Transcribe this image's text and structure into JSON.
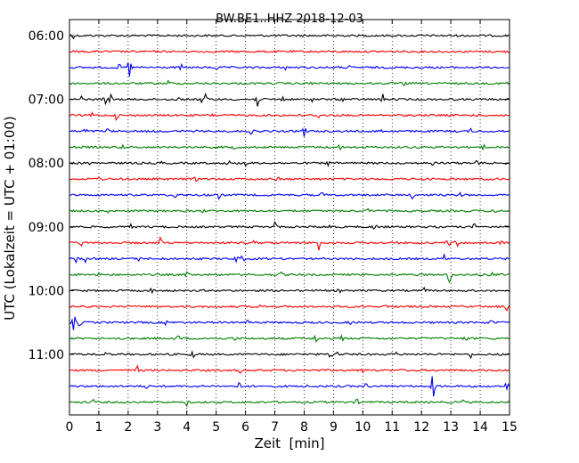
{
  "chart_data": {
    "type": "line",
    "title": "BW.BE1..HHZ 2018-12-03",
    "xlabel": "Zeit  [min]",
    "ylabel": "UTC (Lokalzeit = UTC + 01:00)",
    "xlim": [
      0,
      15
    ],
    "x_ticks": [
      "0",
      "1",
      "2",
      "3",
      "4",
      "5",
      "6",
      "7",
      "8",
      "9",
      "10",
      "11",
      "12",
      "13",
      "14",
      "15"
    ],
    "y_ticks": [
      {
        "label": "06:00",
        "row": 0
      },
      {
        "label": "07:00",
        "row": 4
      },
      {
        "label": "08:00",
        "row": 8
      },
      {
        "label": "09:00",
        "row": 12
      },
      {
        "label": "10:00",
        "row": 16
      },
      {
        "label": "11:00",
        "row": 20
      }
    ],
    "colors": [
      "#000000",
      "#ff0000",
      "#0000ff",
      "#008000"
    ],
    "grid": "vertical dotted",
    "rows": [
      {
        "t": "06:00",
        "events": [
          [
            9.1,
            0.4
          ],
          [
            0.1,
            0.4
          ]
        ]
      },
      {
        "t": "06:15",
        "events": []
      },
      {
        "t": "06:30",
        "events": [
          [
            2.05,
            1.8
          ],
          [
            3.8,
            0.3
          ],
          [
            7.4,
            0.3
          ],
          [
            11.9,
            0.3
          ],
          [
            1.7,
            0.3
          ],
          [
            5.0,
            0.3
          ],
          [
            9.5,
            0.3
          ]
        ]
      },
      {
        "t": "06:45",
        "events": [
          [
            3.4,
            0.5
          ],
          [
            8.2,
            0.3
          ],
          [
            11.4,
            0.3
          ],
          [
            14.9,
            0.3
          ]
        ]
      },
      {
        "t": "07:00",
        "events": [
          [
            1.2,
            0.8
          ],
          [
            1.4,
            0.6
          ],
          [
            4.5,
            0.6
          ],
          [
            4.65,
            0.6
          ],
          [
            6.4,
            1.0
          ],
          [
            7.3,
            0.7
          ],
          [
            10.7,
            0.7
          ],
          [
            0.4,
            0.4
          ],
          [
            3.7,
            0.4
          ],
          [
            8.3,
            0.3
          ],
          [
            9.3,
            0.3
          ]
        ]
      },
      {
        "t": "07:15",
        "events": [
          [
            1.6,
            0.5
          ],
          [
            0.8,
            0.3
          ],
          [
            4.9,
            0.3
          ],
          [
            8.5,
            0.3
          ],
          [
            12.7,
            0.3
          ]
        ]
      },
      {
        "t": "07:30",
        "events": [
          [
            0.55,
            0.4
          ],
          [
            8.0,
            0.9
          ],
          [
            6.2,
            0.3
          ],
          [
            10.6,
            0.3
          ],
          [
            1.3,
            0.3
          ],
          [
            13.7,
            0.3
          ]
        ]
      },
      {
        "t": "07:45",
        "events": [
          [
            1.8,
            0.3
          ],
          [
            5.6,
            0.3
          ],
          [
            9.2,
            0.3
          ],
          [
            14.1,
            0.3
          ]
        ]
      },
      {
        "t": "08:00",
        "events": [
          [
            5.4,
            0.6
          ],
          [
            6.0,
            0.4
          ],
          [
            12.4,
            0.6
          ],
          [
            13.9,
            0.6
          ],
          [
            0.7,
            0.3
          ],
          [
            3.1,
            0.3
          ],
          [
            8.8,
            0.3
          ]
        ]
      },
      {
        "t": "08:15",
        "events": [
          [
            1.0,
            0.4
          ],
          [
            7.1,
            0.3
          ],
          [
            11.2,
            0.3
          ],
          [
            4.3,
            0.3
          ]
        ]
      },
      {
        "t": "08:30",
        "events": [
          [
            3.6,
            0.4
          ],
          [
            5.1,
            0.4
          ],
          [
            11.7,
            0.4
          ],
          [
            13.3,
            0.4
          ],
          [
            8.6,
            0.3
          ]
        ]
      },
      {
        "t": "08:45",
        "events": [
          [
            1.3,
            0.3
          ],
          [
            4.6,
            0.3
          ],
          [
            10.2,
            0.3
          ],
          [
            14.5,
            0.3
          ]
        ]
      },
      {
        "t": "09:00",
        "events": [
          [
            7.0,
            0.6
          ],
          [
            8.9,
            0.5
          ],
          [
            10.4,
            0.5
          ],
          [
            2.1,
            0.3
          ],
          [
            13.8,
            0.3
          ]
        ]
      },
      {
        "t": "09:15",
        "events": [
          [
            3.1,
            0.6
          ],
          [
            8.5,
            1.1
          ],
          [
            12.9,
            0.8
          ],
          [
            13.2,
            0.6
          ],
          [
            0.4,
            0.4
          ],
          [
            6.3,
            0.3
          ],
          [
            14.7,
            0.3
          ]
        ]
      },
      {
        "t": "09:30",
        "events": [
          [
            0.2,
            0.6
          ],
          [
            0.55,
            0.5
          ],
          [
            5.7,
            0.5
          ],
          [
            5.9,
            0.5
          ],
          [
            12.8,
            0.6
          ],
          [
            2.4,
            0.3
          ],
          [
            9.6,
            0.3
          ]
        ]
      },
      {
        "t": "09:45",
        "events": [
          [
            12.95,
            1.2
          ],
          [
            14.4,
            0.4
          ],
          [
            4.0,
            0.3
          ],
          [
            7.2,
            0.3
          ],
          [
            1.0,
            0.3
          ]
        ]
      },
      {
        "t": "10:00",
        "events": [
          [
            9.2,
            0.3
          ],
          [
            2.8,
            0.3
          ],
          [
            12.1,
            0.3
          ]
        ]
      },
      {
        "t": "10:15",
        "events": [
          [
            14.9,
            0.5
          ],
          [
            6.5,
            0.3
          ],
          [
            10.8,
            0.3
          ],
          [
            0.6,
            0.3
          ]
        ]
      },
      {
        "t": "10:30",
        "events": [
          [
            0.15,
            1.0
          ],
          [
            0.35,
            0.5
          ],
          [
            6.1,
            0.4
          ],
          [
            9.6,
            0.4
          ],
          [
            14.4,
            0.5
          ],
          [
            3.3,
            0.3
          ]
        ]
      },
      {
        "t": "10:45",
        "events": [
          [
            1.7,
            0.4
          ],
          [
            3.7,
            0.4
          ],
          [
            8.4,
            0.5
          ],
          [
            9.3,
            0.4
          ],
          [
            13.5,
            0.4
          ],
          [
            5.6,
            0.3
          ]
        ]
      },
      {
        "t": "11:00",
        "events": [
          [
            4.2,
            0.4
          ],
          [
            8.9,
            0.6
          ],
          [
            9.15,
            0.5
          ],
          [
            11.1,
            0.4
          ],
          [
            13.7,
            0.4
          ],
          [
            1.2,
            0.3
          ]
        ]
      },
      {
        "t": "11:15",
        "events": [
          [
            2.3,
            0.5
          ],
          [
            10.0,
            0.4
          ],
          [
            5.8,
            0.3
          ],
          [
            13.0,
            0.3
          ]
        ]
      },
      {
        "t": "11:30",
        "events": [
          [
            5.8,
            0.5
          ],
          [
            8.1,
            0.5
          ],
          [
            10.1,
            0.4
          ],
          [
            12.4,
            1.9
          ],
          [
            14.9,
            0.6
          ],
          [
            2.6,
            0.3
          ]
        ]
      },
      {
        "t": "11:45",
        "events": [
          [
            4.0,
            0.4
          ],
          [
            9.8,
            0.3
          ],
          [
            13.4,
            0.3
          ],
          [
            0.8,
            0.3
          ]
        ]
      }
    ]
  }
}
